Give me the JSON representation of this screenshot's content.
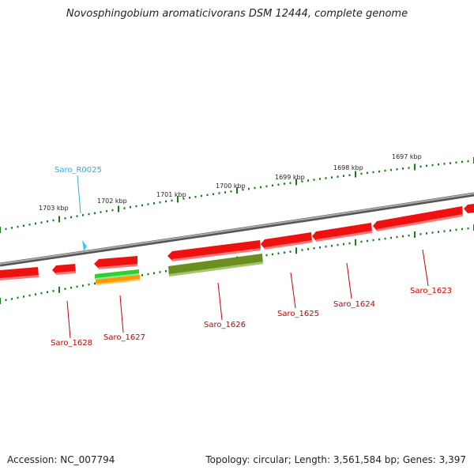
{
  "title": "Novosphingobium aromaticivorans DSM 12444, complete genome",
  "footer": {
    "accession": "Accession: NC_007794",
    "summary": "Topology: circular; Length: 3,561,584 bp; Genes: 3,397"
  },
  "colors": {
    "backbone": "#808080",
    "gene_red": "#ee1111",
    "gene_olive": "#6b8e23",
    "gene_green": "#33cc33",
    "gene_orange": "#ff9900",
    "trna_cyan": "#33ccee",
    "tick_green": "#1a7a1a",
    "label_red": "#cc0000",
    "label_cyan": "#33aadd"
  },
  "scale_labels": [
    "1703 kbp",
    "1702 kbp",
    "1701 kbp",
    "1700 kbp",
    "1699 kbp",
    "1698 kbp",
    "1697 kbp"
  ],
  "gene_labels": [
    {
      "text": "Saro_R0025",
      "type": "tRNA"
    },
    {
      "text": "Saro_1628",
      "type": "CDS"
    },
    {
      "text": "Saro_1627",
      "type": "CDS"
    },
    {
      "text": "Saro_1626",
      "type": "CDS"
    },
    {
      "text": "Saro_1625",
      "type": "CDS"
    },
    {
      "text": "Saro_1624",
      "type": "CDS"
    },
    {
      "text": "Saro_1623",
      "type": "CDS"
    }
  ]
}
